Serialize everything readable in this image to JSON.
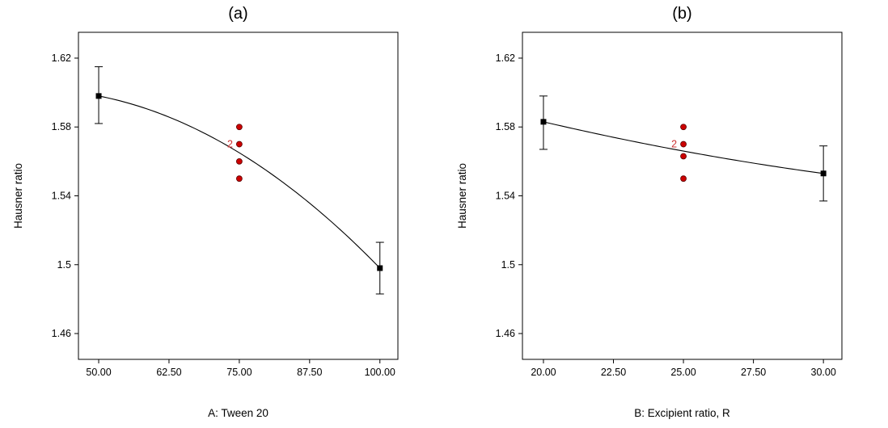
{
  "figure": {
    "background": "#ffffff"
  },
  "colors": {
    "axis": "#000000",
    "text": "#000000",
    "curve": "#000000",
    "end_marker": "#000000",
    "design_point_fill": "#cc0000",
    "design_point_edge": "#5a0000",
    "count_label": "#cc3333"
  },
  "chart_data": [
    {
      "type": "line",
      "title": "(a)",
      "xlabel": "A: Tween 20",
      "ylabel": "Hausner ratio",
      "xlim": [
        46.4,
        103.2
      ],
      "ylim": [
        1.445,
        1.635
      ],
      "grid": false,
      "legend": false,
      "xticks": {
        "values": [
          50,
          62.5,
          75,
          87.5,
          100
        ],
        "labels": [
          "50.00",
          "62.50",
          "75.00",
          "87.50",
          "100.00"
        ]
      },
      "yticks": {
        "values": [
          1.46,
          1.5,
          1.54,
          1.58,
          1.62
        ],
        "labels": [
          "1.46",
          "1.5",
          "1.54",
          "1.58",
          "1.62"
        ]
      },
      "curve_anchors": [
        [
          50,
          1.598
        ],
        [
          75,
          1.565
        ],
        [
          100,
          1.498
        ]
      ],
      "end_points": [
        {
          "x": 50,
          "y": 1.598,
          "err_low": 1.582,
          "err_high": 1.615
        },
        {
          "x": 100,
          "y": 1.498,
          "err_low": 1.483,
          "err_high": 1.513
        }
      ],
      "design_points": {
        "x": 75,
        "ys": [
          1.58,
          1.57,
          1.56,
          1.55
        ],
        "count_label": {
          "text": "2",
          "y": 1.57
        }
      }
    },
    {
      "type": "line",
      "title": "(b)",
      "xlabel": "B: Excipient ratio, R",
      "ylabel": "Hausner ratio",
      "xlim": [
        19.25,
        30.66
      ],
      "ylim": [
        1.445,
        1.635
      ],
      "grid": false,
      "legend": false,
      "xticks": {
        "values": [
          20,
          22.5,
          25,
          27.5,
          30
        ],
        "labels": [
          "20.00",
          "22.50",
          "25.00",
          "27.50",
          "30.00"
        ]
      },
      "yticks": {
        "values": [
          1.46,
          1.5,
          1.54,
          1.58,
          1.62
        ],
        "labels": [
          "1.46",
          "1.5",
          "1.54",
          "1.58",
          "1.62"
        ]
      },
      "curve_anchors": [
        [
          20,
          1.583
        ],
        [
          25,
          1.566
        ],
        [
          30,
          1.553
        ]
      ],
      "end_points": [
        {
          "x": 20,
          "y": 1.583,
          "err_low": 1.567,
          "err_high": 1.598
        },
        {
          "x": 30,
          "y": 1.553,
          "err_low": 1.537,
          "err_high": 1.569
        }
      ],
      "design_points": {
        "x": 25,
        "ys": [
          1.58,
          1.57,
          1.563,
          1.55
        ],
        "count_label": {
          "text": "2",
          "y": 1.57
        }
      }
    }
  ]
}
